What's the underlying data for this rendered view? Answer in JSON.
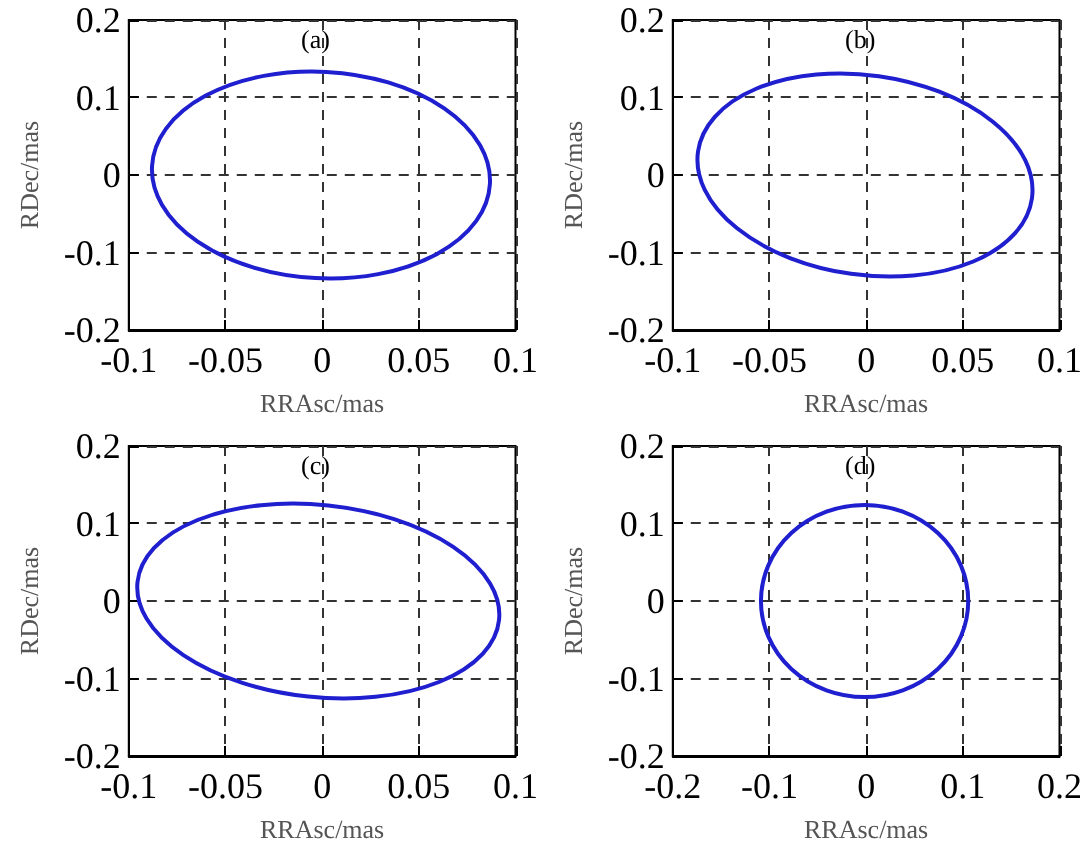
{
  "chart_data": [
    {
      "type": "line",
      "annotations": [
        "(a)"
      ],
      "xlabel": "RRAsc/mas",
      "ylabel": "RDec/mas",
      "xlim": [
        -0.1,
        0.1
      ],
      "xticks": [
        -0.1,
        -0.05,
        0,
        0.05,
        0.1
      ],
      "ylim": [
        -0.2,
        0.2
      ],
      "yticks": [
        -0.2,
        -0.1,
        0,
        0.1,
        0.2
      ],
      "grid": true
    },
    {
      "type": "line",
      "annotations": [
        "(b)"
      ],
      "xlabel": "RRAsc/mas",
      "ylabel": "RDec/mas",
      "xlim": [
        -0.1,
        0.1
      ],
      "xticks": [
        -0.1,
        -0.05,
        0,
        0.05,
        0.1
      ],
      "ylim": [
        -0.2,
        0.2
      ],
      "yticks": [
        -0.2,
        -0.1,
        0,
        0.1,
        0.2
      ],
      "grid": true
    },
    {
      "type": "line",
      "annotations": [
        "(c)"
      ],
      "xlabel": "RRAsc/mas",
      "ylabel": "RDec/mas",
      "xlim": [
        -0.1,
        0.1
      ],
      "xticks": [
        -0.1,
        -0.05,
        0,
        0.05,
        0.1
      ],
      "ylim": [
        -0.2,
        0.2
      ],
      "yticks": [
        -0.2,
        -0.1,
        0,
        0.1,
        0.2
      ],
      "grid": true
    },
    {
      "type": "line",
      "annotations": [
        "(d)"
      ],
      "xlabel": "RRAsc/mas",
      "ylabel": "RDec/mas",
      "xlim": [
        -0.2,
        0.2
      ],
      "xticks": [
        -0.2,
        -0.1,
        0,
        0.1,
        0.2
      ],
      "ylim": [
        -0.2,
        0.2
      ],
      "yticks": [
        -0.2,
        -0.1,
        0,
        0.1,
        0.2
      ],
      "grid": true
    }
  ]
}
